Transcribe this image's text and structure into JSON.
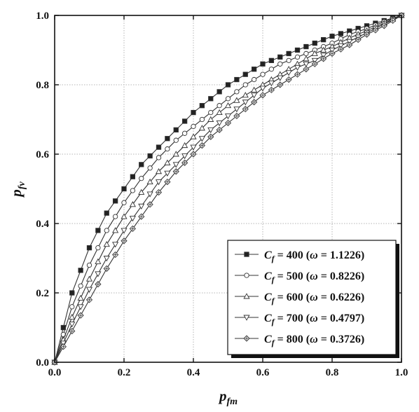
{
  "chart_data": {
    "type": "line",
    "title": "",
    "xlabel": {
      "main": "p",
      "sub": "fm"
    },
    "ylabel": {
      "main": "p",
      "sub": "fv"
    },
    "xlim": [
      0,
      1
    ],
    "ylim": [
      0,
      1
    ],
    "x_ticks": [
      "0.0",
      "0.2",
      "0.4",
      "0.6",
      "0.8",
      "1.0"
    ],
    "y_ticks": [
      "0.0",
      "0.2",
      "0.4",
      "0.6",
      "0.8",
      "1.0"
    ],
    "grid": true,
    "legend_position": "bottom-right",
    "x": [
      0.0,
      0.05,
      0.1,
      0.15,
      0.2,
      0.25,
      0.3,
      0.35,
      0.4,
      0.45,
      0.5,
      0.55,
      0.6,
      0.65,
      0.7,
      0.75,
      0.8,
      0.85,
      0.9,
      0.95,
      1.0
    ],
    "series": [
      {
        "name": "C_f = 400 (ω = 1.1226)",
        "legend": {
          "var": "C",
          "sub": "f",
          "eq": " = 400 (",
          "omega": "ω",
          "rest": " = 1.1226)"
        },
        "marker": "filled-square",
        "values": [
          0.0,
          0.2,
          0.33,
          0.43,
          0.5,
          0.57,
          0.62,
          0.67,
          0.72,
          0.76,
          0.8,
          0.83,
          0.86,
          0.88,
          0.9,
          0.92,
          0.94,
          0.955,
          0.97,
          0.985,
          1.0
        ]
      },
      {
        "name": "C_f = 500 (ω = 0.8226)",
        "legend": {
          "var": "C",
          "sub": "f",
          "eq": " = 500 (",
          "omega": "ω",
          "rest": " = 0.8226)"
        },
        "marker": "circle",
        "values": [
          0.0,
          0.16,
          0.28,
          0.38,
          0.46,
          0.53,
          0.59,
          0.64,
          0.68,
          0.72,
          0.76,
          0.8,
          0.83,
          0.86,
          0.88,
          0.9,
          0.92,
          0.945,
          0.962,
          0.982,
          1.0
        ]
      },
      {
        "name": "C_f = 600 (ω = 0.6226)",
        "legend": {
          "var": "C",
          "sub": "f",
          "eq": " = 600 (",
          "omega": "ω",
          "rest": " = 0.6226)"
        },
        "marker": "triangle-up",
        "values": [
          0.0,
          0.13,
          0.24,
          0.34,
          0.42,
          0.49,
          0.55,
          0.6,
          0.65,
          0.7,
          0.74,
          0.77,
          0.8,
          0.83,
          0.86,
          0.89,
          0.91,
          0.935,
          0.956,
          0.978,
          1.0
        ]
      },
      {
        "name": "C_f = 700 (ω = 0.4797)",
        "legend": {
          "var": "C",
          "sub": "f",
          "eq": " = 700 (",
          "omega": "ω",
          "rest": " = 0.4797)"
        },
        "marker": "triangle-down",
        "values": [
          0.0,
          0.11,
          0.21,
          0.3,
          0.38,
          0.45,
          0.52,
          0.57,
          0.62,
          0.67,
          0.71,
          0.75,
          0.79,
          0.82,
          0.85,
          0.87,
          0.9,
          0.925,
          0.95,
          0.975,
          1.0
        ]
      },
      {
        "name": "C_f = 800 (ω = 0.3726)",
        "legend": {
          "var": "C",
          "sub": "f",
          "eq": " = 800 (",
          "omega": "ω",
          "rest": " = 0.3726)"
        },
        "marker": "diamond-cross",
        "values": [
          0.0,
          0.09,
          0.18,
          0.27,
          0.35,
          0.42,
          0.49,
          0.55,
          0.6,
          0.65,
          0.69,
          0.73,
          0.77,
          0.8,
          0.83,
          0.86,
          0.89,
          0.915,
          0.945,
          0.97,
          1.0
        ]
      }
    ]
  }
}
